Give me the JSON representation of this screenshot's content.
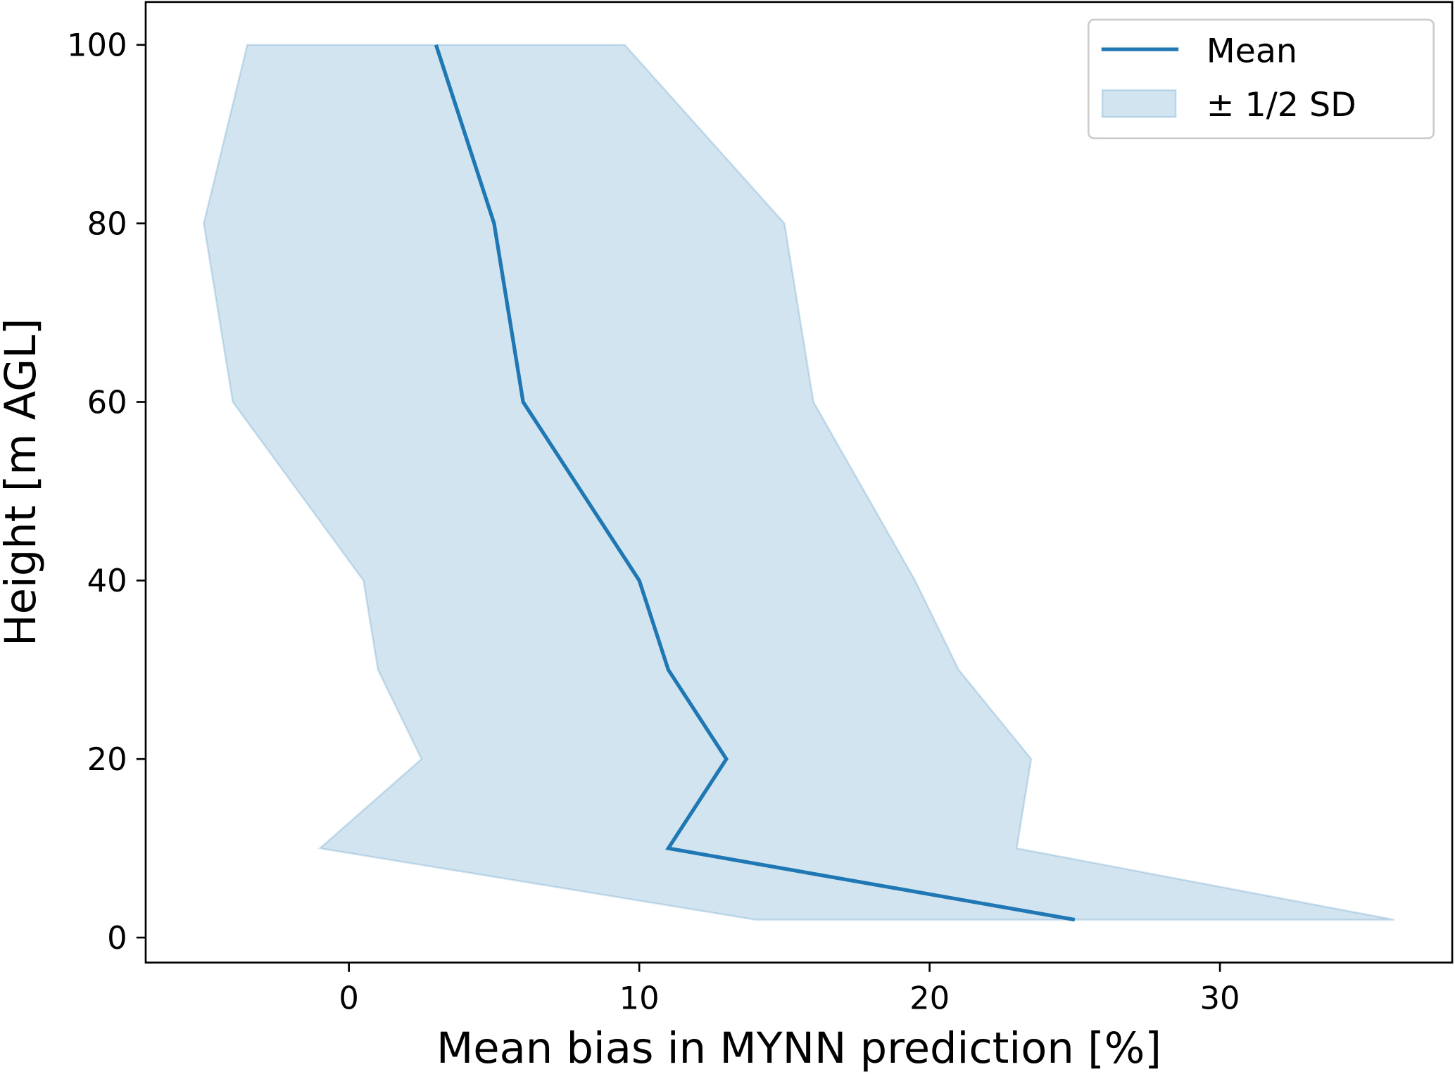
{
  "chart_data": {
    "type": "line",
    "xlabel": "Mean bias in MYNN prediction [%]",
    "ylabel": "Height [m AGL]",
    "xlim": [
      -7,
      38
    ],
    "ylim": [
      -2.8,
      104.8
    ],
    "xticks": [
      0,
      10,
      20,
      30
    ],
    "yticks": [
      0,
      20,
      40,
      60,
      80,
      100
    ],
    "grid": false,
    "legend_position": "top-right",
    "heights": [
      2,
      10,
      20,
      30,
      40,
      60,
      80,
      100
    ],
    "series": [
      {
        "name": "Mean",
        "type": "line",
        "color": "#1f77b4",
        "x": [
          25,
          11,
          13,
          11,
          10,
          6,
          5,
          3
        ]
      },
      {
        "name": "± 1/2 SD",
        "type": "band",
        "color": "#1f77b4",
        "alpha": 0.2,
        "lower": [
          14,
          -1,
          2.5,
          1,
          0.5,
          -4,
          -5,
          -3.5
        ],
        "upper": [
          36,
          23,
          23.5,
          21,
          19.5,
          16,
          15,
          9.5
        ]
      }
    ]
  }
}
